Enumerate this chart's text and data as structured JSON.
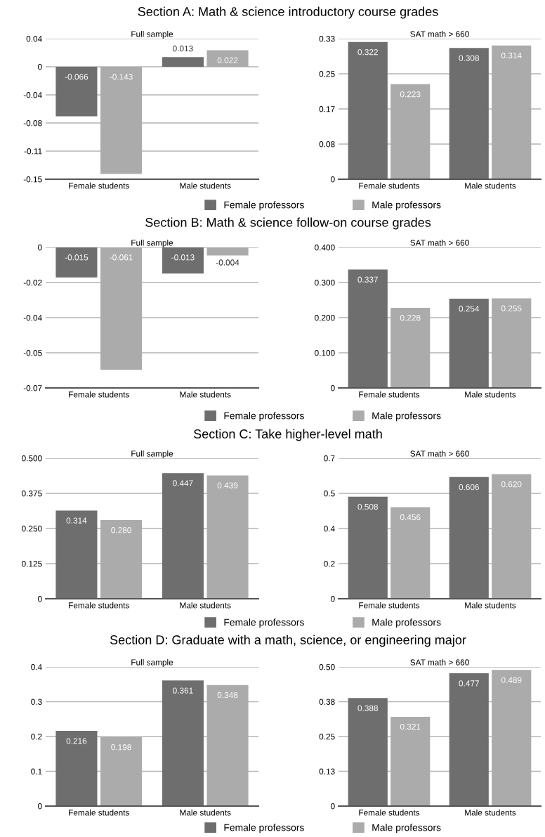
{
  "chart_data": [
    {
      "type": "bar",
      "title": "Section A: Math & science introductory course grades",
      "subtitle": "Full sample",
      "categories": [
        "Female students",
        "Male students"
      ],
      "ylim": [
        -0.15,
        0.0375
      ],
      "yticks": [
        {
          "value": 0.0375,
          "label": "0.04"
        },
        0,
        {
          "value": -0.0375,
          "label": "-0.04"
        },
        {
          "value": -0.075,
          "label": "-0.08"
        },
        {
          "value": -0.1125,
          "label": "-0.11"
        },
        -0.15
      ],
      "grid": "y",
      "series": [
        {
          "color": "#6e6e6e",
          "values": [
            -0.066,
            0.013
          ],
          "value_labels": [
            "-0.066",
            "0.013"
          ]
        },
        {
          "color": "#ababab",
          "values": [
            -0.143,
            0.022
          ],
          "value_labels": [
            "-0.143",
            "0.022"
          ]
        }
      ]
    },
    {
      "type": "bar",
      "subtitle": "SAT math > 660",
      "categories": [
        "Female students",
        "Male students"
      ],
      "ylim": [
        0,
        0.33
      ],
      "yticks": [
        0,
        {
          "value": 0.0825,
          "label": "0.08"
        },
        {
          "value": 0.165,
          "label": "0.17"
        },
        {
          "value": 0.2475,
          "label": "0.25"
        },
        0.33
      ],
      "grid": "y",
      "legend": "bottom",
      "series": [
        {
          "name": "Female professors",
          "color": "#6e6e6e",
          "values": [
            0.322,
            0.308
          ],
          "value_labels": [
            "0.322",
            "0.308"
          ]
        },
        {
          "name": "Male professors",
          "color": "#ababab",
          "values": [
            0.223,
            0.314
          ],
          "value_labels": [
            "0.223",
            "0.314"
          ]
        }
      ]
    },
    {
      "type": "bar",
      "title": "Section B: Math & science follow-on course grades",
      "subtitle": "Full sample",
      "categories": [
        "Female students",
        "Male students"
      ],
      "ylim": [
        -0.07,
        0
      ],
      "yticks": [
        0,
        {
          "value": -0.0175,
          "label": "-0.02"
        },
        {
          "value": -0.035,
          "label": "-0.04"
        },
        {
          "value": -0.0525,
          "label": "-0.05"
        },
        -0.07
      ],
      "grid": "y",
      "series": [
        {
          "color": "#6e6e6e",
          "values": [
            -0.015,
            -0.013
          ],
          "value_labels": [
            "-0.015",
            "-0.013"
          ]
        },
        {
          "color": "#ababab",
          "values": [
            -0.061,
            -0.004
          ],
          "value_labels": [
            "-0.061",
            "-0.004"
          ]
        }
      ]
    },
    {
      "type": "bar",
      "subtitle": "SAT math > 660",
      "categories": [
        "Female students",
        "Male students"
      ],
      "ylim": [
        0,
        0.4
      ],
      "yticks": [
        0,
        {
          "value": 0.1,
          "label": "0.100"
        },
        {
          "value": 0.2,
          "label": "0.200"
        },
        {
          "value": 0.3,
          "label": "0.300"
        },
        {
          "value": 0.4,
          "label": "0.400"
        }
      ],
      "grid": "y",
      "legend": "bottom",
      "series": [
        {
          "name": "Female professors",
          "color": "#6e6e6e",
          "values": [
            0.337,
            0.254
          ],
          "value_labels": [
            "0.337",
            "0.254"
          ]
        },
        {
          "name": "Male professors",
          "color": "#ababab",
          "values": [
            0.228,
            0.255
          ],
          "value_labels": [
            "0.228",
            "0.255"
          ]
        }
      ]
    },
    {
      "type": "bar",
      "title": "Section C: Take higher-level math",
      "subtitle": "Full sample",
      "categories": [
        "Female students",
        "Male students"
      ],
      "ylim": [
        0,
        0.5
      ],
      "yticks": [
        0,
        0.125,
        {
          "value": 0.25,
          "label": "0.250"
        },
        0.375,
        {
          "value": 0.5,
          "label": "0.500"
        }
      ],
      "grid": "y",
      "series": [
        {
          "color": "#6e6e6e",
          "values": [
            0.314,
            0.447
          ],
          "value_labels": [
            "0.314",
            "0.447"
          ]
        },
        {
          "color": "#ababab",
          "values": [
            0.28,
            0.439
          ],
          "value_labels": [
            "0.280",
            "0.439"
          ]
        }
      ]
    },
    {
      "type": "bar",
      "subtitle": "SAT math > 660",
      "categories": [
        "Female students",
        "Male students"
      ],
      "ylim": [
        0,
        0.7
      ],
      "yticks": [
        0,
        {
          "value": 0.175,
          "label": "0.2"
        },
        {
          "value": 0.35,
          "label": "0.4"
        },
        {
          "value": 0.525,
          "label": "0.5"
        },
        0.7
      ],
      "grid": "y",
      "legend": "bottom",
      "series": [
        {
          "name": "Female professors",
          "color": "#6e6e6e",
          "values": [
            0.508,
            0.606
          ],
          "value_labels": [
            "0.508",
            "0.606"
          ]
        },
        {
          "name": "Male professors",
          "color": "#ababab",
          "values": [
            0.456,
            0.62
          ],
          "value_labels": [
            "0.456",
            "0.620"
          ]
        }
      ]
    },
    {
      "type": "bar",
      "title": "Section D: Graduate with a math, science, or engineering major",
      "subtitle": "Full sample",
      "categories": [
        "Female students",
        "Male students"
      ],
      "ylim": [
        0,
        0.4
      ],
      "yticks": [
        0,
        0.1,
        0.2,
        0.3,
        0.4
      ],
      "grid": "y",
      "series": [
        {
          "color": "#6e6e6e",
          "values": [
            0.216,
            0.361
          ],
          "value_labels": [
            "0.216",
            "0.361"
          ]
        },
        {
          "color": "#ababab",
          "values": [
            0.198,
            0.348
          ],
          "value_labels": [
            "0.198",
            "0.348"
          ]
        }
      ]
    },
    {
      "type": "bar",
      "subtitle": "SAT math > 660",
      "categories": [
        "Female students",
        "Male students"
      ],
      "ylim": [
        0,
        0.5
      ],
      "yticks": [
        0,
        {
          "value": 0.125,
          "label": "0.13"
        },
        0.25,
        {
          "value": 0.375,
          "label": "0.38"
        },
        {
          "value": 0.5,
          "label": "0.50"
        }
      ],
      "grid": "y",
      "legend": "bottom",
      "series": [
        {
          "name": "Female professors",
          "color": "#6e6e6e",
          "values": [
            0.388,
            0.477
          ],
          "value_labels": [
            "0.388",
            "0.477"
          ]
        },
        {
          "name": "Male professors",
          "color": "#ababab",
          "values": [
            0.321,
            0.489
          ],
          "value_labels": [
            "0.321",
            "0.489"
          ]
        }
      ]
    }
  ]
}
